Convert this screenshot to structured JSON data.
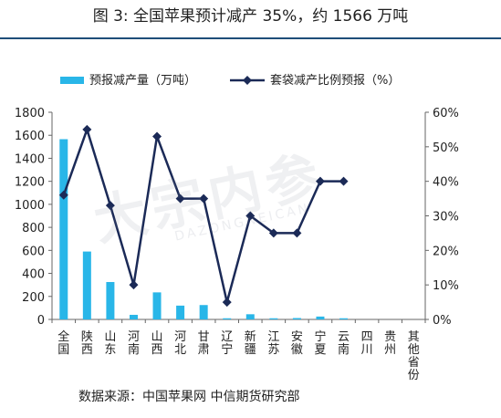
{
  "figure": {
    "title": "图 3:    全国苹果预计减产 35%，约 1566 万吨",
    "source": "数据来源：中国苹果网  中信期货研究部",
    "watermark": "大宗内参",
    "watermark_sub": "DAZONGNEICAN"
  },
  "chart_data": {
    "type": "bar+line",
    "categories": [
      "全国",
      "陕西",
      "山东",
      "河南",
      "山西",
      "河北",
      "甘肃",
      "辽宁",
      "新疆",
      "江苏",
      "安徽",
      "宁夏",
      "云南",
      "四川",
      "贵州",
      "其他省份"
    ],
    "series": [
      {
        "name": "预报减产量（万吨）",
        "type": "bar",
        "axis": "left",
        "color": "#29b6e8",
        "values": [
          1566,
          590,
          325,
          40,
          235,
          120,
          125,
          10,
          45,
          10,
          12,
          25,
          10,
          null,
          null,
          null
        ]
      },
      {
        "name": "套袋减产比例预报（%）",
        "type": "line",
        "axis": "right",
        "color": "#1b2a57",
        "values": [
          36,
          55,
          33,
          10,
          53,
          35,
          35,
          5,
          30,
          25,
          25,
          40,
          40,
          null,
          null,
          null
        ]
      }
    ],
    "y_left": {
      "min": 0,
      "max": 1800,
      "ticks": [
        "0",
        "200",
        "400",
        "600",
        "800",
        "1000",
        "1200",
        "1400",
        "1600",
        "1800"
      ]
    },
    "y_right": {
      "min": 0,
      "max": 60,
      "ticks": [
        "0%",
        "10%",
        "20%",
        "30%",
        "40%",
        "50%",
        "60%"
      ]
    },
    "legend_position": "top",
    "grid": false
  }
}
